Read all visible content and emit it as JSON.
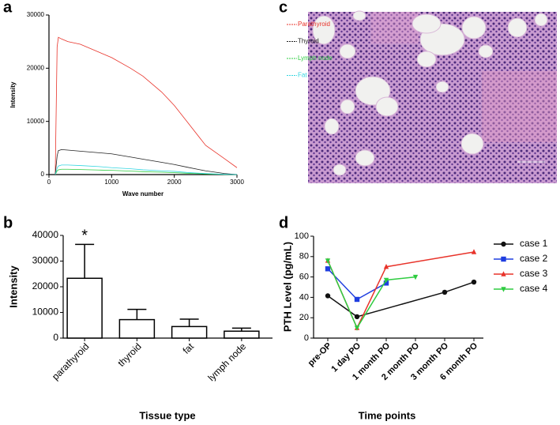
{
  "panel_labels": [
    "a",
    "b",
    "c",
    "d"
  ],
  "chart_data": [
    {
      "type": "line",
      "x_label": "Wave number",
      "y_label": "Intensity",
      "x": [
        100,
        130,
        150,
        200,
        300,
        500,
        800,
        1000,
        1300,
        1500,
        1800,
        2000,
        2200,
        2500,
        2800,
        3000
      ],
      "series": [
        {
          "name": "Parathyroid",
          "color": "#e8332a",
          "values": [
            0,
            24000,
            25800,
            25500,
            25000,
            24500,
            23000,
            22000,
            20000,
            18500,
            15500,
            13000,
            10000,
            5500,
            3000,
            1300
          ]
        },
        {
          "name": "Thyroid",
          "color": "#222222",
          "values": [
            0,
            3500,
            4500,
            4700,
            4600,
            4400,
            4100,
            3900,
            3300,
            2900,
            2300,
            1900,
            1400,
            700,
            200,
            0
          ]
        },
        {
          "name": "Lymph node",
          "color": "#2ecc40",
          "values": [
            0,
            700,
            900,
            1000,
            1000,
            950,
            850,
            800,
            650,
            550,
            450,
            350,
            250,
            120,
            30,
            0
          ]
        },
        {
          "name": "Fat",
          "color": "#33d6e0",
          "values": [
            0,
            1200,
            1600,
            1800,
            1800,
            1700,
            1500,
            1300,
            1100,
            900,
            700,
            600,
            400,
            200,
            50,
            0
          ]
        }
      ],
      "xlim": [
        0,
        3000
      ],
      "xticks": [
        0,
        1000,
        2000,
        3000
      ],
      "ylim": [
        0,
        30000
      ],
      "yticks": [
        0,
        10000,
        20000,
        30000
      ],
      "legend": "top-right"
    },
    {
      "type": "bar",
      "x_label": "Tissue type",
      "y_label": "Intensity",
      "categories": [
        "parathyroid",
        "thyroid",
        "fat",
        "lymph node"
      ],
      "values": [
        23300,
        7200,
        4500,
        2700
      ],
      "errors": [
        13200,
        4000,
        2900,
        1200
      ],
      "color": "#ffffff",
      "ylim": [
        0,
        40000
      ],
      "yticks": [
        0,
        10000,
        20000,
        30000,
        40000
      ],
      "annotations": [
        {
          "text": "*",
          "category": "parathyroid"
        }
      ]
    },
    {
      "type": "line",
      "x_label": "Time points",
      "y_label": "PTH Level (pg/mL)",
      "categories": [
        "pre-OP",
        "1 day PO",
        "1 month PO",
        "2 month PO",
        "3 month PO",
        "6 month PO"
      ],
      "series": [
        {
          "name": "case 1",
          "color": "#111111",
          "marker": "circle",
          "x": [
            "pre-OP",
            "1 day PO",
            "3 month PO",
            "6 month PO"
          ],
          "values": [
            41.5,
            21,
            45,
            55
          ]
        },
        {
          "name": "case 2",
          "color": "#1f3ee0",
          "marker": "square",
          "x": [
            "pre-OP",
            "1 day PO",
            "1 month PO"
          ],
          "values": [
            68,
            38,
            54
          ]
        },
        {
          "name": "case 3",
          "color": "#e8332a",
          "marker": "triangle-up",
          "x": [
            "pre-OP",
            "1 day PO",
            "1 month PO",
            "6 month PO"
          ],
          "values": [
            76,
            10,
            70,
            84.5
          ]
        },
        {
          "name": "case 4",
          "color": "#2ecc40",
          "marker": "triangle-down",
          "x": [
            "pre-OP",
            "1 day PO",
            "1 month PO",
            "2 month PO"
          ],
          "values": [
            76,
            10,
            57,
            60
          ]
        }
      ],
      "ylim": [
        0,
        100
      ],
      "yticks": [
        0,
        20,
        40,
        60,
        80,
        100
      ],
      "legend": "right"
    }
  ]
}
